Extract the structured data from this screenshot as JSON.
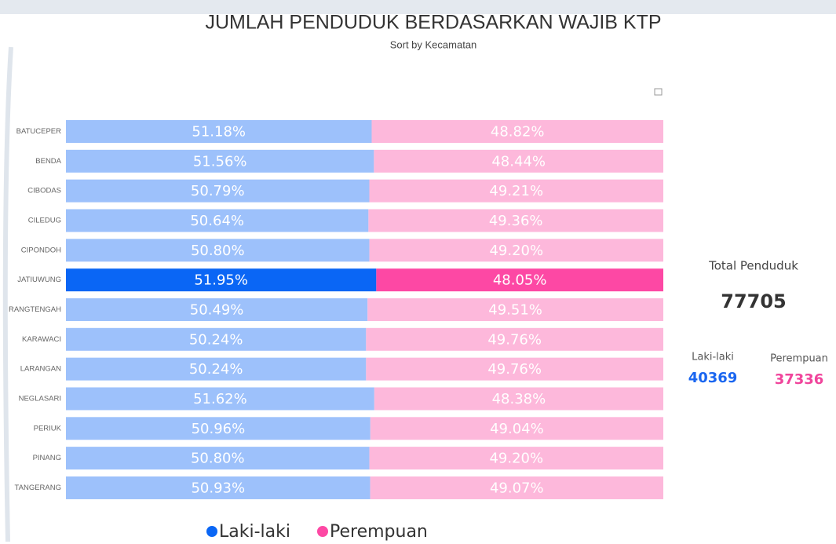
{
  "chart_data": {
    "type": "stacked-bar-100",
    "title": "JUMLAH PENDUDUK BERDASARKAN WAJIB KTP",
    "subtitle": "Sort by Kecamatan",
    "categories": [
      "BATUCEPER",
      "BENDA",
      "CIBODAS",
      "CILEDUG",
      "CIPONDOH",
      "JATIUWUNG",
      "RANGTENGAH",
      "KARAWACI",
      "LARANGAN",
      "NEGLASARI",
      "PERIUK",
      "PINANG",
      "TANGERANG"
    ],
    "highlighted_category": "JATIUWUNG",
    "xlim": [
      0,
      100
    ],
    "series": [
      {
        "name": "Laki-laki",
        "color": "#0a66f5",
        "faded_color": "#9dc1fb",
        "values": [
          51.18,
          51.56,
          50.79,
          50.64,
          50.8,
          51.95,
          50.49,
          50.24,
          50.24,
          51.62,
          50.96,
          50.8,
          50.93
        ],
        "value_labels": [
          "51.18%",
          "51.56%",
          "50.79%",
          "50.64%",
          "50.80%",
          "51.95%",
          "50.49%",
          "50.24%",
          "50.24%",
          "51.62%",
          "50.96%",
          "50.80%",
          "50.93%"
        ]
      },
      {
        "name": "Perempuan",
        "color": "#fd48a4",
        "faded_color": "#fdb8db",
        "values": [
          48.82,
          48.44,
          49.21,
          49.36,
          49.2,
          48.05,
          49.51,
          49.76,
          49.76,
          48.38,
          49.04,
          49.2,
          49.07
        ],
        "value_labels": [
          "48.82%",
          "48.44%",
          "49.21%",
          "49.36%",
          "49.20%",
          "48.05%",
          "49.51%",
          "49.76%",
          "49.76%",
          "48.38%",
          "49.04%",
          "49.20%",
          "49.07%"
        ]
      }
    ]
  },
  "cards": {
    "total": {
      "label": "Total Penduduk",
      "value": 77705
    },
    "male": {
      "label": "Laki-laki",
      "value": 40369,
      "color": "#1a66f0"
    },
    "female": {
      "label": "Perempuan",
      "value": 37336,
      "color": "#f0459c"
    }
  }
}
